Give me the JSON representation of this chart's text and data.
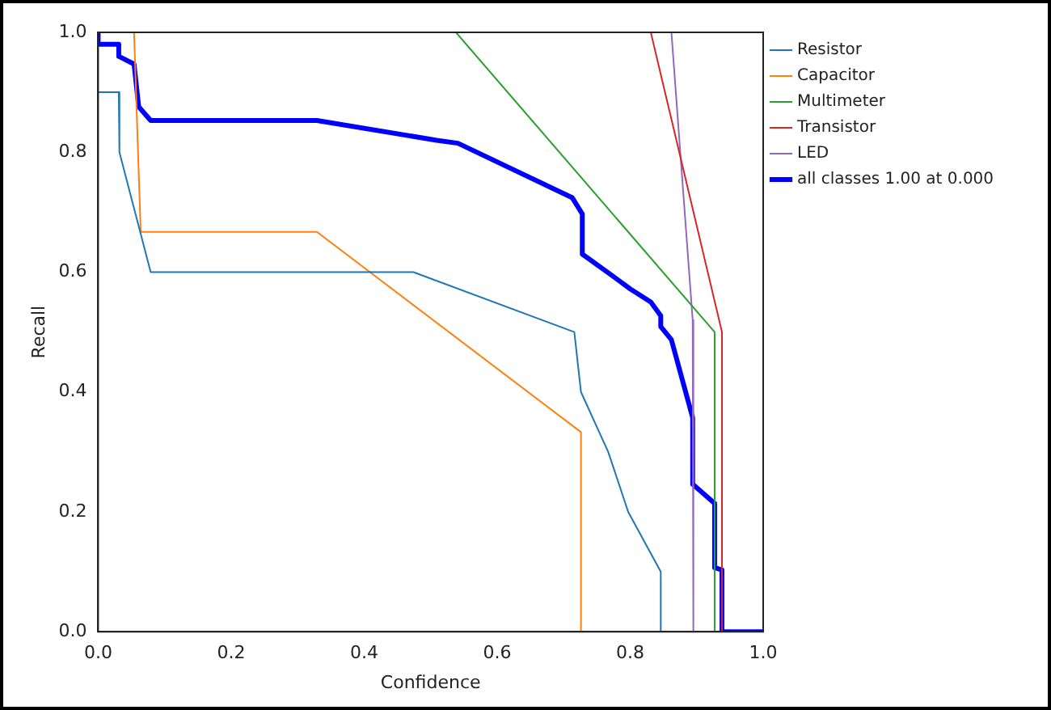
{
  "chart_data": {
    "type": "line",
    "xlabel": "Confidence",
    "ylabel": "Recall",
    "xlim": [
      0,
      1
    ],
    "ylim": [
      0,
      1
    ],
    "xticks": [
      {
        "value": 0,
        "label": "0.0"
      },
      {
        "value": 0.2,
        "label": "0.2"
      },
      {
        "value": 0.4,
        "label": "0.4"
      },
      {
        "value": 0.6,
        "label": "0.6"
      },
      {
        "value": 0.8,
        "label": "0.8"
      },
      {
        "value": 1,
        "label": "1.0"
      }
    ],
    "yticks": [
      {
        "value": 0,
        "label": "0.0"
      },
      {
        "value": 0.2,
        "label": "0.2"
      },
      {
        "value": 0.4,
        "label": "0.4"
      },
      {
        "value": 0.6,
        "label": "0.6"
      },
      {
        "value": 0.8,
        "label": "0.8"
      },
      {
        "value": 1,
        "label": "1.0"
      }
    ],
    "grid": false,
    "legend": "right",
    "marker": "none",
    "line_style": "solid",
    "series": [
      {
        "name": "Resistor",
        "color": "#1f77b4",
        "x": [
          0,
          0.031,
          0.032,
          0.079,
          0.474,
          0.716,
          0.726,
          0.767,
          0.797,
          0.846,
          0.846
        ],
        "values": [
          0.9,
          0.9,
          0.8,
          0.6,
          0.6,
          0.5,
          0.4,
          0.3,
          0.2,
          0.1,
          0
        ]
      },
      {
        "name": "Capacitor",
        "color": "#ff7f0e",
        "x": [
          0.054,
          0.064,
          0.329,
          0.726,
          0.726
        ],
        "values": [
          1,
          0.667,
          0.667,
          0.333,
          0
        ]
      },
      {
        "name": "Multimeter",
        "color": "#2ca02c",
        "x": [
          0.538,
          0.927,
          0.927
        ],
        "values": [
          1,
          0.5,
          0
        ]
      },
      {
        "name": "Transistor",
        "color": "#d62728",
        "x": [
          0.831,
          0.938,
          0.938
        ],
        "values": [
          1,
          0.5,
          0
        ]
      },
      {
        "name": "LED",
        "color": "#9467bd",
        "x": [
          0.862,
          0.894,
          0.895
        ],
        "values": [
          1,
          0.52,
          0
        ]
      },
      {
        "name": "all classes 1.00 at 0.000",
        "color": "#0000ff",
        "x": [
          0,
          0,
          0.031,
          0.031,
          0.054,
          0.061,
          0.079,
          0.329,
          0.509,
          0.541,
          0.713,
          0.728,
          0.728,
          0.773,
          0.8,
          0.831,
          0.846,
          0.846,
          0.862,
          0.894,
          0.894,
          0.927,
          0.927,
          0.938,
          0.938,
          1
        ],
        "values": [
          1,
          0.98,
          0.98,
          0.96,
          0.947,
          0.876,
          0.853,
          0.853,
          0.82,
          0.815,
          0.724,
          0.697,
          0.63,
          0.594,
          0.572,
          0.55,
          0.527,
          0.509,
          0.487,
          0.357,
          0.246,
          0.214,
          0.107,
          0.103,
          0,
          0
        ]
      }
    ]
  }
}
